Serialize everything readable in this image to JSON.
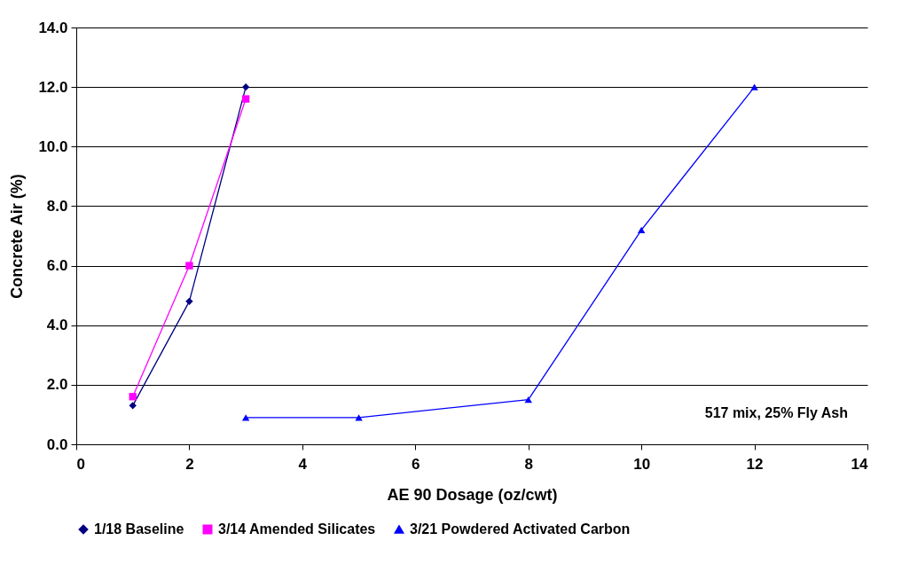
{
  "chart_data": {
    "type": "line",
    "xlabel": "AE 90 Dosage (oz/cwt)",
    "ylabel": "Concrete Air (%)",
    "xlim": [
      0,
      14
    ],
    "xticks": [
      0,
      2,
      4,
      6,
      8,
      10,
      12,
      14
    ],
    "ylim": [
      0,
      14
    ],
    "yticks": [
      {
        "value": 0,
        "label": "0.0"
      },
      {
        "value": 2,
        "label": "2.0"
      },
      {
        "value": 4,
        "label": "4.0"
      },
      {
        "value": 6,
        "label": "6.0"
      },
      {
        "value": 8,
        "label": "8.0"
      },
      {
        "value": 10,
        "label": "10.0"
      },
      {
        "value": 12,
        "label": "12.0"
      },
      {
        "value": 14,
        "label": "14.0"
      }
    ],
    "grid": "y",
    "legend": "bottom",
    "line_style": "solid",
    "annotations": [
      "517 mix, 25% Fly Ash"
    ],
    "series": [
      {
        "name": "1/18 Baseline",
        "color": "#000080",
        "marker": "diamond",
        "x": [
          1,
          2,
          3
        ],
        "values": [
          1.3,
          4.8,
          12.0
        ]
      },
      {
        "name": "3/14 Amended Silicates",
        "color": "#ff00ff",
        "marker": "square",
        "x": [
          1,
          2,
          3
        ],
        "values": [
          1.6,
          6.0,
          11.6
        ]
      },
      {
        "name": "3/21 Powdered Activated Carbon",
        "color": "#0000ff",
        "marker": "triangle",
        "x": [
          3,
          5,
          8,
          10,
          12
        ],
        "values": [
          0.9,
          0.9,
          1.5,
          7.2,
          12.0
        ]
      }
    ]
  }
}
